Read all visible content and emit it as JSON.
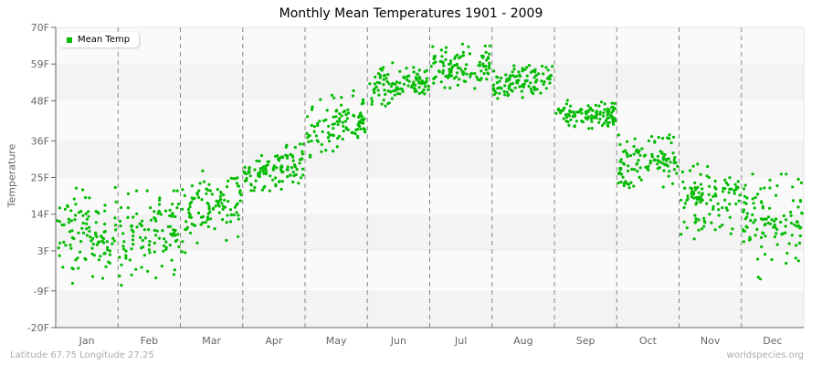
{
  "title": "Monthly Mean Temperatures 1901 - 2009",
  "legend": {
    "label": "Mean Temp",
    "color": "#00bb00"
  },
  "footer": {
    "location": "Latitude 67.75 Longitude 27.25",
    "source": "worldspecies.org"
  },
  "colors": {
    "point": "#00bb00",
    "band_light": "#fafafa",
    "band_dark": "#f3f3f3",
    "axis": "#666666",
    "grid_dash": "#888888",
    "tick_text": "#666666"
  },
  "chart_data": {
    "type": "scatter",
    "title": "Monthly Mean Temperatures 1901 - 2009",
    "xlabel": "",
    "ylabel": "Temperature",
    "ylim": [
      -20,
      70
    ],
    "y_ticks": [
      "70F",
      "59F",
      "48F",
      "36F",
      "25F",
      "14F",
      "3F",
      "-9F",
      "-20F"
    ],
    "y_tick_values": [
      70,
      59,
      48,
      36,
      25,
      14,
      3,
      -9,
      -20
    ],
    "categories": [
      "Jan",
      "Feb",
      "Mar",
      "Apr",
      "May",
      "Jun",
      "Jul",
      "Aug",
      "Sep",
      "Oct",
      "Nov",
      "Dec"
    ],
    "grid": {
      "vertical_dashed_month_dividers": true,
      "horizontal_alternating_bands": true
    },
    "legend_position": "top-left",
    "years": [
      1901,
      2009
    ],
    "points_per_month": 109,
    "series": [
      {
        "name": "Mean Temp",
        "monthly_summary": [
          {
            "month": "Jan",
            "mean": 8,
            "min": -10,
            "max": 22,
            "start": 7,
            "end": 9
          },
          {
            "month": "Feb",
            "mean": 8,
            "min": -12,
            "max": 21,
            "start": 6,
            "end": 11
          },
          {
            "month": "Mar",
            "mean": 16,
            "min": 2,
            "max": 27,
            "start": 13,
            "end": 20
          },
          {
            "month": "Apr",
            "mean": 27,
            "min": 19,
            "max": 35,
            "start": 25,
            "end": 30
          },
          {
            "month": "May",
            "mean": 40,
            "min": 30,
            "max": 51,
            "start": 37,
            "end": 43
          },
          {
            "month": "Jun",
            "mean": 53,
            "min": 46,
            "max": 60,
            "start": 51,
            "end": 55
          },
          {
            "month": "Jul",
            "mean": 58,
            "min": 50,
            "max": 65,
            "start": 57,
            "end": 59
          },
          {
            "month": "Aug",
            "mean": 54,
            "min": 48,
            "max": 59,
            "start": 53,
            "end": 55
          },
          {
            "month": "Sep",
            "mean": 44,
            "min": 38,
            "max": 49,
            "start": 44,
            "end": 44
          },
          {
            "month": "Oct",
            "mean": 30,
            "min": 19,
            "max": 41,
            "start": 28,
            "end": 32
          },
          {
            "month": "Nov",
            "mean": 18,
            "min": 5,
            "max": 29,
            "start": 19,
            "end": 18
          },
          {
            "month": "Dec",
            "mean": 11,
            "min": -10,
            "max": 26,
            "start": 12,
            "end": 12
          }
        ]
      }
    ]
  }
}
